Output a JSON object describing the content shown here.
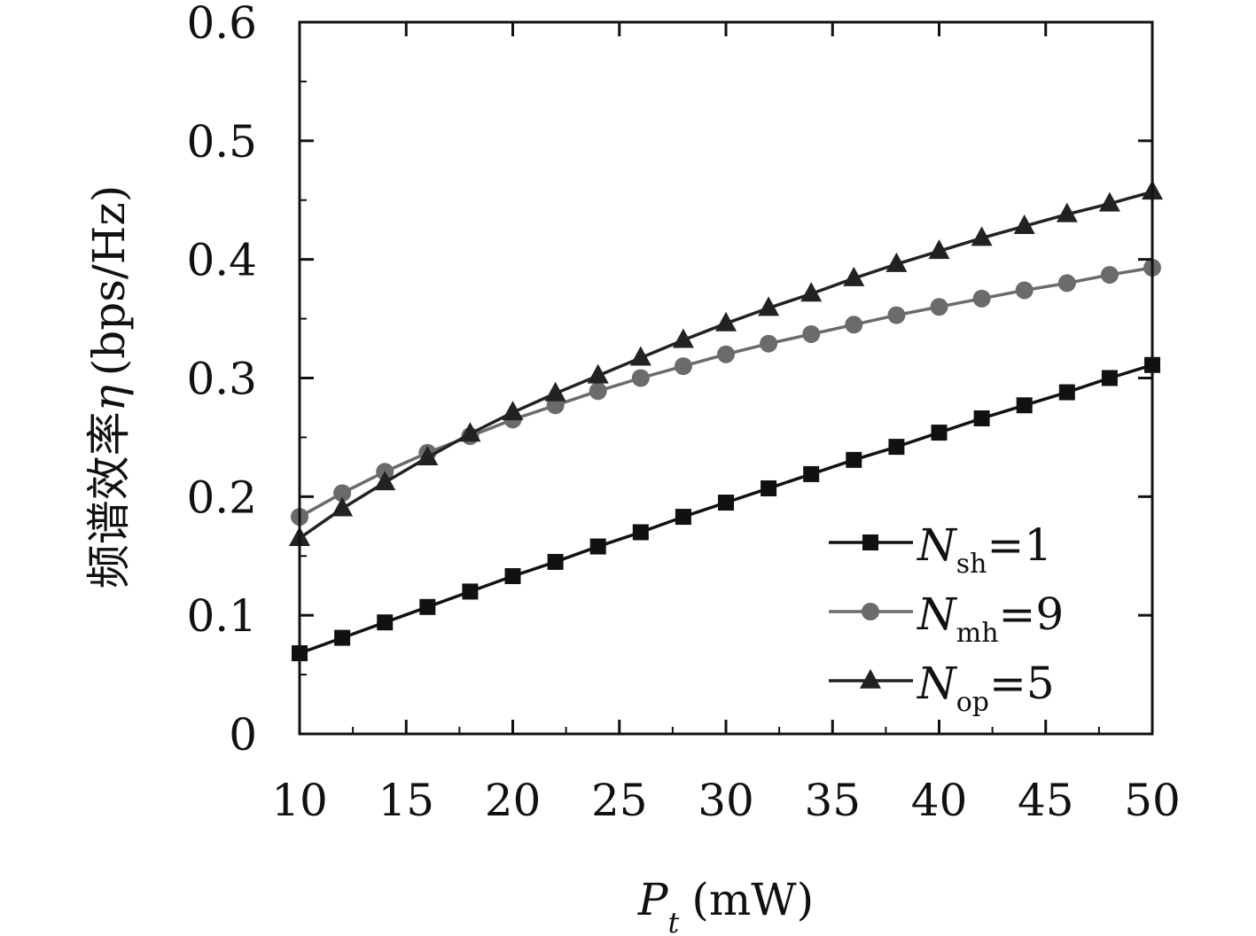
{
  "chart_data": {
    "type": "line",
    "title": "",
    "xlabel": {
      "symbol": "P",
      "subscript": "t",
      "unit": "(mW)"
    },
    "ylabel": {
      "text": "频谱效率",
      "symbol": "η",
      "unit": "(bps/Hz)"
    },
    "xlim": [
      10,
      50
    ],
    "ylim": [
      0,
      0.6
    ],
    "xticks": [
      10,
      15,
      20,
      25,
      30,
      35,
      40,
      45,
      50
    ],
    "yticks": [
      0,
      0.1,
      0.2,
      0.3,
      0.4,
      0.5,
      0.6
    ],
    "grid": false,
    "legend_position": "bottom-right",
    "x": [
      10,
      12,
      14,
      16,
      18,
      20,
      22,
      24,
      26,
      28,
      30,
      32,
      34,
      36,
      38,
      40,
      42,
      44,
      46,
      48,
      50
    ],
    "series": [
      {
        "name": "N",
        "name_sub": "sh",
        "name_value": "=1",
        "marker": "square",
        "color": "#111111",
        "values": [
          0.068,
          0.081,
          0.094,
          0.107,
          0.12,
          0.133,
          0.145,
          0.158,
          0.17,
          0.183,
          0.195,
          0.207,
          0.219,
          0.231,
          0.242,
          0.254,
          0.266,
          0.277,
          0.288,
          0.3,
          0.311
        ]
      },
      {
        "name": "N",
        "name_sub": "mh",
        "name_value": "=9",
        "marker": "circle",
        "color": "#6b6b6b",
        "values": [
          0.183,
          0.203,
          0.221,
          0.237,
          0.251,
          0.265,
          0.277,
          0.289,
          0.3,
          0.31,
          0.32,
          0.329,
          0.337,
          0.345,
          0.353,
          0.36,
          0.367,
          0.374,
          0.38,
          0.387,
          0.393
        ]
      },
      {
        "name": "N",
        "name_sub": "op",
        "name_value": "=5",
        "marker": "triangle",
        "color": "#222222",
        "values": [
          0.165,
          0.19,
          0.212,
          0.233,
          0.253,
          0.271,
          0.287,
          0.302,
          0.317,
          0.332,
          0.346,
          0.359,
          0.371,
          0.384,
          0.396,
          0.407,
          0.418,
          0.428,
          0.438,
          0.447,
          0.457
        ]
      }
    ]
  }
}
